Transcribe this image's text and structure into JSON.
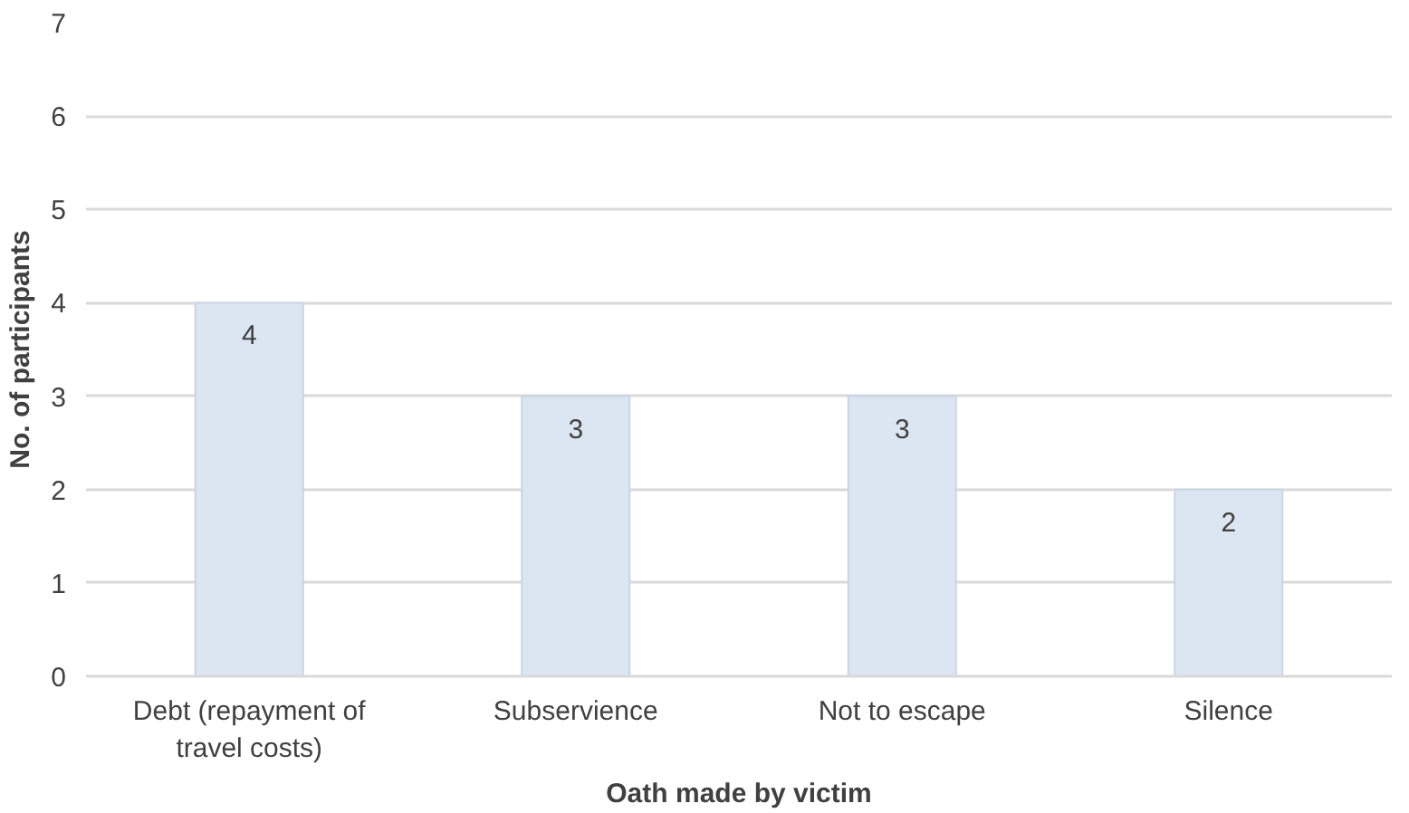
{
  "chart_data": {
    "type": "bar",
    "xlabel": "Oath made by victim",
    "ylabel": "No. of participants",
    "categories": [
      "Debt (repayment of travel costs)",
      "Subservience",
      "Not to escape",
      "Silence"
    ],
    "values": [
      4,
      3,
      3,
      2
    ],
    "color": "#dce6f2",
    "ylim": [
      0,
      7
    ],
    "yticks": [
      0,
      1,
      2,
      3,
      4,
      5,
      6,
      7
    ],
    "grid": "y",
    "data_labels": true
  }
}
